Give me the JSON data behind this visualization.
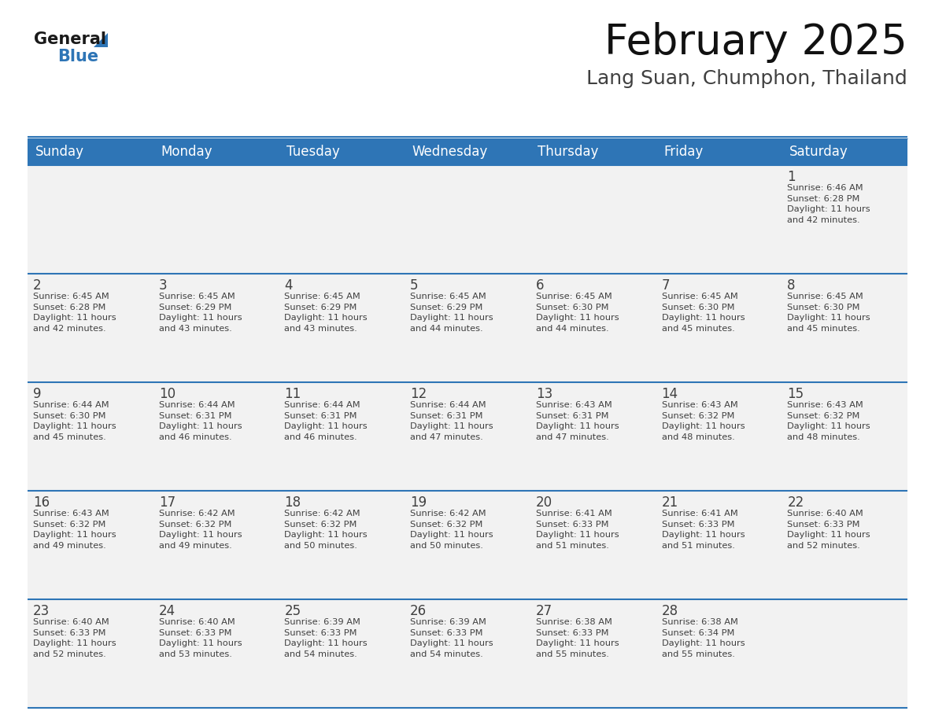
{
  "title": "February 2025",
  "subtitle": "Lang Suan, Chumphon, Thailand",
  "header_color": "#2E75B6",
  "header_text_color": "#FFFFFF",
  "days_of_week": [
    "Sunday",
    "Monday",
    "Tuesday",
    "Wednesday",
    "Thursday",
    "Friday",
    "Saturday"
  ],
  "cell_bg_light": "#F2F2F2",
  "cell_bg_white": "#FFFFFF",
  "text_color": "#404040",
  "line_color": "#2E75B6",
  "background_color": "#FFFFFF",
  "title_fontsize": 38,
  "subtitle_fontsize": 18,
  "dow_fontsize": 12,
  "day_num_fontsize": 12,
  "info_fontsize": 8.2,
  "calendar": [
    [
      {
        "day": null,
        "info": null
      },
      {
        "day": null,
        "info": null
      },
      {
        "day": null,
        "info": null
      },
      {
        "day": null,
        "info": null
      },
      {
        "day": null,
        "info": null
      },
      {
        "day": null,
        "info": null
      },
      {
        "day": 1,
        "info": "Sunrise: 6:46 AM\nSunset: 6:28 PM\nDaylight: 11 hours\nand 42 minutes."
      }
    ],
    [
      {
        "day": 2,
        "info": "Sunrise: 6:45 AM\nSunset: 6:28 PM\nDaylight: 11 hours\nand 42 minutes."
      },
      {
        "day": 3,
        "info": "Sunrise: 6:45 AM\nSunset: 6:29 PM\nDaylight: 11 hours\nand 43 minutes."
      },
      {
        "day": 4,
        "info": "Sunrise: 6:45 AM\nSunset: 6:29 PM\nDaylight: 11 hours\nand 43 minutes."
      },
      {
        "day": 5,
        "info": "Sunrise: 6:45 AM\nSunset: 6:29 PM\nDaylight: 11 hours\nand 44 minutes."
      },
      {
        "day": 6,
        "info": "Sunrise: 6:45 AM\nSunset: 6:30 PM\nDaylight: 11 hours\nand 44 minutes."
      },
      {
        "day": 7,
        "info": "Sunrise: 6:45 AM\nSunset: 6:30 PM\nDaylight: 11 hours\nand 45 minutes."
      },
      {
        "day": 8,
        "info": "Sunrise: 6:45 AM\nSunset: 6:30 PM\nDaylight: 11 hours\nand 45 minutes."
      }
    ],
    [
      {
        "day": 9,
        "info": "Sunrise: 6:44 AM\nSunset: 6:30 PM\nDaylight: 11 hours\nand 45 minutes."
      },
      {
        "day": 10,
        "info": "Sunrise: 6:44 AM\nSunset: 6:31 PM\nDaylight: 11 hours\nand 46 minutes."
      },
      {
        "day": 11,
        "info": "Sunrise: 6:44 AM\nSunset: 6:31 PM\nDaylight: 11 hours\nand 46 minutes."
      },
      {
        "day": 12,
        "info": "Sunrise: 6:44 AM\nSunset: 6:31 PM\nDaylight: 11 hours\nand 47 minutes."
      },
      {
        "day": 13,
        "info": "Sunrise: 6:43 AM\nSunset: 6:31 PM\nDaylight: 11 hours\nand 47 minutes."
      },
      {
        "day": 14,
        "info": "Sunrise: 6:43 AM\nSunset: 6:32 PM\nDaylight: 11 hours\nand 48 minutes."
      },
      {
        "day": 15,
        "info": "Sunrise: 6:43 AM\nSunset: 6:32 PM\nDaylight: 11 hours\nand 48 minutes."
      }
    ],
    [
      {
        "day": 16,
        "info": "Sunrise: 6:43 AM\nSunset: 6:32 PM\nDaylight: 11 hours\nand 49 minutes."
      },
      {
        "day": 17,
        "info": "Sunrise: 6:42 AM\nSunset: 6:32 PM\nDaylight: 11 hours\nand 49 minutes."
      },
      {
        "day": 18,
        "info": "Sunrise: 6:42 AM\nSunset: 6:32 PM\nDaylight: 11 hours\nand 50 minutes."
      },
      {
        "day": 19,
        "info": "Sunrise: 6:42 AM\nSunset: 6:32 PM\nDaylight: 11 hours\nand 50 minutes."
      },
      {
        "day": 20,
        "info": "Sunrise: 6:41 AM\nSunset: 6:33 PM\nDaylight: 11 hours\nand 51 minutes."
      },
      {
        "day": 21,
        "info": "Sunrise: 6:41 AM\nSunset: 6:33 PM\nDaylight: 11 hours\nand 51 minutes."
      },
      {
        "day": 22,
        "info": "Sunrise: 6:40 AM\nSunset: 6:33 PM\nDaylight: 11 hours\nand 52 minutes."
      }
    ],
    [
      {
        "day": 23,
        "info": "Sunrise: 6:40 AM\nSunset: 6:33 PM\nDaylight: 11 hours\nand 52 minutes."
      },
      {
        "day": 24,
        "info": "Sunrise: 6:40 AM\nSunset: 6:33 PM\nDaylight: 11 hours\nand 53 minutes."
      },
      {
        "day": 25,
        "info": "Sunrise: 6:39 AM\nSunset: 6:33 PM\nDaylight: 11 hours\nand 54 minutes."
      },
      {
        "day": 26,
        "info": "Sunrise: 6:39 AM\nSunset: 6:33 PM\nDaylight: 11 hours\nand 54 minutes."
      },
      {
        "day": 27,
        "info": "Sunrise: 6:38 AM\nSunset: 6:33 PM\nDaylight: 11 hours\nand 55 minutes."
      },
      {
        "day": 28,
        "info": "Sunrise: 6:38 AM\nSunset: 6:34 PM\nDaylight: 11 hours\nand 55 minutes."
      },
      {
        "day": null,
        "info": null
      }
    ]
  ]
}
